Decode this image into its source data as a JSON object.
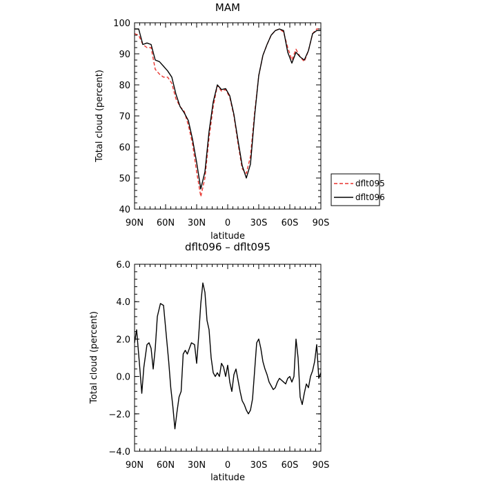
{
  "chart_data": [
    {
      "type": "line",
      "title": "MAM",
      "xlabel": "latitude",
      "ylabel": "Total cloud (percent)",
      "x_tick_values": [
        90,
        60,
        30,
        0,
        -30,
        -60,
        -90
      ],
      "x_tick_labels": [
        "90N",
        "60N",
        "30N",
        "0",
        "30S",
        "60S",
        "90S"
      ],
      "xlim": [
        90,
        -90
      ],
      "ylim": [
        40,
        100
      ],
      "y_ticks": [
        40,
        50,
        60,
        70,
        80,
        90,
        100
      ],
      "y_tick_labels": [
        "40",
        "50",
        "60",
        "70",
        "80",
        "90",
        "100"
      ],
      "legend": "right",
      "series": [
        {
          "name": "dflt095",
          "color": "#e8312b",
          "dash": "dashed",
          "x": [
            90,
            86,
            82,
            78,
            74,
            70,
            66,
            62,
            58,
            54,
            50,
            46,
            42,
            38,
            34,
            30,
            26,
            22,
            18,
            14,
            10,
            6,
            2,
            -2,
            -6,
            -10,
            -14,
            -18,
            -22,
            -26,
            -30,
            -34,
            -38,
            -42,
            -46,
            -50,
            -54,
            -58,
            -62,
            -66,
            -70,
            -74,
            -78,
            -82,
            -86,
            -90
          ],
          "values": [
            96.5,
            96.0,
            93.0,
            92.0,
            92.0,
            85.0,
            83.5,
            82.5,
            82.5,
            80.5,
            75.5,
            73.0,
            71.5,
            67.0,
            61.0,
            52.0,
            44.0,
            50.0,
            63.0,
            73.0,
            79.8,
            78.0,
            78.5,
            76.0,
            70.0,
            61.0,
            53.0,
            51.5,
            57.0,
            71.0,
            83.0,
            89.5,
            93.0,
            96.0,
            97.5,
            98.0,
            97.0,
            92.0,
            88.0,
            91.5,
            89.0,
            87.5,
            91.0,
            96.5,
            98.0,
            98.0
          ]
        },
        {
          "name": "dflt096",
          "color": "#000000",
          "dash": "solid",
          "x": [
            90,
            86,
            82,
            78,
            74,
            70,
            66,
            62,
            58,
            54,
            50,
            46,
            42,
            38,
            34,
            30,
            26,
            22,
            18,
            14,
            10,
            6,
            2,
            -2,
            -6,
            -10,
            -14,
            -18,
            -22,
            -26,
            -30,
            -34,
            -38,
            -42,
            -46,
            -50,
            -54,
            -58,
            -62,
            -66,
            -70,
            -74,
            -78,
            -82,
            -86,
            -90
          ],
          "values": [
            98.0,
            98.0,
            93.0,
            93.5,
            93.0,
            88.0,
            87.5,
            86.0,
            84.5,
            82.5,
            77.0,
            73.0,
            71.0,
            68.5,
            62.5,
            55.0,
            46.5,
            52.0,
            65.0,
            74.5,
            80.0,
            78.5,
            78.8,
            76.5,
            70.5,
            62.0,
            54.0,
            50.0,
            54.5,
            70.0,
            83.0,
            89.5,
            93.0,
            96.0,
            97.5,
            98.0,
            97.5,
            90.5,
            87.0,
            90.5,
            89.0,
            88.0,
            91.0,
            96.5,
            97.5,
            97.5
          ]
        }
      ]
    },
    {
      "type": "line",
      "title": "dflt096 – dflt095",
      "xlabel": "latitude",
      "ylabel": "Total cloud (percent)",
      "x_tick_values": [
        90,
        60,
        30,
        0,
        -30,
        -60,
        -90
      ],
      "x_tick_labels": [
        "90N",
        "60N",
        "30N",
        "0",
        "30S",
        "60S",
        "90S"
      ],
      "xlim": [
        90,
        -90
      ],
      "ylim": [
        -4,
        6
      ],
      "y_ticks": [
        -4,
        -2,
        0,
        2,
        4,
        6
      ],
      "y_tick_labels": [
        "−4.0",
        "−2.0",
        "0.0",
        "2.0",
        "4.0",
        "6.0"
      ],
      "series": [
        {
          "color": "#000000",
          "dash": "solid",
          "x": [
            90,
            88,
            85,
            83,
            81,
            78,
            76,
            74,
            72,
            70,
            68,
            65,
            62,
            59,
            57,
            55,
            53,
            51,
            49,
            47,
            45,
            43,
            41,
            39,
            37,
            35,
            32,
            30,
            28,
            26,
            24,
            22,
            20,
            18,
            16,
            14,
            12,
            10,
            8,
            6,
            4,
            2,
            0,
            -2,
            -4,
            -6,
            -8,
            -10,
            -12,
            -14,
            -16,
            -18,
            -20,
            -22,
            -24,
            -26,
            -28,
            -30,
            -32,
            -34,
            -36,
            -38,
            -40,
            -42,
            -44,
            -46,
            -48,
            -50,
            -52,
            -54,
            -56,
            -58,
            -60,
            -62,
            -64,
            -66,
            -68,
            -70,
            -72,
            -74,
            -76,
            -78,
            -80,
            -82,
            -84,
            -86,
            -88,
            -90
          ],
          "values": [
            1.8,
            2.5,
            0.5,
            -0.9,
            0.5,
            1.7,
            1.8,
            1.5,
            0.4,
            1.5,
            3.2,
            3.9,
            3.8,
            2.0,
            0.8,
            -0.6,
            -1.6,
            -2.8,
            -1.9,
            -1.1,
            -0.8,
            1.2,
            1.4,
            1.2,
            1.5,
            1.8,
            1.7,
            0.7,
            2.2,
            3.9,
            5.0,
            4.5,
            3.0,
            2.5,
            1.0,
            0.2,
            0.0,
            0.2,
            0.0,
            0.7,
            0.5,
            0.0,
            0.6,
            -0.3,
            -0.8,
            0.1,
            0.4,
            -0.2,
            -0.8,
            -1.3,
            -1.5,
            -1.8,
            -2.0,
            -1.8,
            -1.2,
            0.3,
            1.8,
            2.0,
            1.5,
            0.8,
            0.4,
            0.1,
            -0.3,
            -0.5,
            -0.7,
            -0.6,
            -0.3,
            -0.1,
            -0.2,
            -0.3,
            -0.4,
            -0.1,
            0.0,
            -0.3,
            0.0,
            2.0,
            1.0,
            -1.1,
            -1.5,
            -0.9,
            -0.4,
            -0.6,
            0.0,
            0.3,
            0.8,
            1.7,
            -0.1,
            0.2
          ]
        }
      ]
    }
  ]
}
